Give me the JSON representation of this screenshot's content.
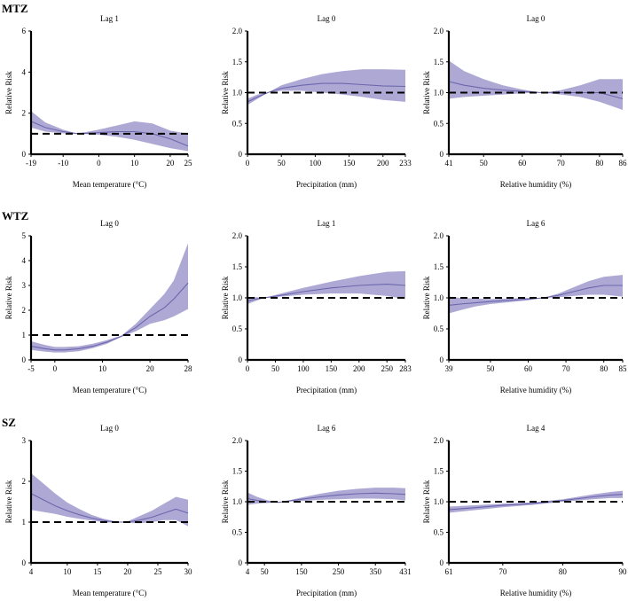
{
  "figure": {
    "rows": [
      {
        "label": "MTZ"
      },
      {
        "label": "WTZ"
      },
      {
        "label": "SZ"
      }
    ]
  },
  "style": {
    "band_color": "#9f9acc",
    "line_color": "#6c66ad",
    "ref_color": "#000000"
  },
  "chart_data": [
    {
      "type": "line",
      "zone": "MTZ",
      "title": "Lag 1",
      "xlabel": "Mean temperature (°C)",
      "ylabel": "Relative Risk",
      "xlim": [
        -19,
        25
      ],
      "ylim": [
        0,
        6
      ],
      "xticks": [
        -19,
        -10,
        0,
        10,
        20,
        25
      ],
      "yticks": [
        0,
        2,
        4,
        6
      ],
      "reference": 1,
      "x": [
        -19,
        -15,
        -10,
        -6,
        0,
        5,
        10,
        15,
        20,
        25
      ],
      "rr": [
        1.6,
        1.3,
        1.1,
        1.0,
        1.05,
        1.1,
        1.1,
        1.0,
        0.75,
        0.4
      ],
      "lower": [
        1.3,
        1.1,
        1.02,
        1.0,
        0.95,
        0.85,
        0.7,
        0.5,
        0.3,
        0.15
      ],
      "upper": [
        2.1,
        1.55,
        1.2,
        1.0,
        1.2,
        1.4,
        1.6,
        1.5,
        1.15,
        1.0
      ]
    },
    {
      "type": "line",
      "zone": "MTZ",
      "title": "Lag 0",
      "xlabel": "Precipitation (mm)",
      "ylabel": "Relative Risk",
      "xlim": [
        0,
        233
      ],
      "ylim": [
        0,
        2.0
      ],
      "xticks": [
        0,
        50,
        100,
        150,
        200,
        233
      ],
      "yticks": [
        "0",
        "0.5",
        "1.0",
        "1.5",
        "2.0"
      ],
      "reference": 1,
      "x": [
        0,
        15,
        30,
        50,
        80,
        110,
        140,
        170,
        200,
        233
      ],
      "rr": [
        0.85,
        0.93,
        1.0,
        1.07,
        1.12,
        1.15,
        1.15,
        1.13,
        1.11,
        1.1
      ],
      "lower": [
        0.8,
        0.9,
        1.0,
        1.03,
        1.03,
        1.0,
        0.97,
        0.93,
        0.88,
        0.85
      ],
      "upper": [
        0.9,
        0.97,
        1.0,
        1.12,
        1.22,
        1.3,
        1.35,
        1.38,
        1.38,
        1.37
      ]
    },
    {
      "type": "line",
      "zone": "MTZ",
      "title": "Lag 0",
      "xlabel": "Relative humidity (%)",
      "ylabel": "Relative Risk",
      "xlim": [
        41,
        86
      ],
      "ylim": [
        0,
        2.0
      ],
      "xticks": [
        41,
        50,
        60,
        70,
        80,
        86
      ],
      "yticks": [
        "0",
        "0.5",
        "1.0",
        "1.5",
        "2.0"
      ],
      "reference": 1,
      "x": [
        41,
        45,
        50,
        55,
        60,
        65,
        70,
        75,
        80,
        86
      ],
      "rr": [
        1.18,
        1.12,
        1.07,
        1.04,
        1.02,
        1.0,
        1.0,
        1.0,
        1.0,
        0.9
      ],
      "lower": [
        0.9,
        0.93,
        0.95,
        0.97,
        0.99,
        1.0,
        0.97,
        0.93,
        0.85,
        0.72
      ],
      "upper": [
        1.52,
        1.35,
        1.22,
        1.12,
        1.05,
        1.0,
        1.04,
        1.12,
        1.22,
        1.22
      ]
    },
    {
      "type": "line",
      "zone": "WTZ",
      "title": "Lag 0",
      "xlabel": "Mean temperature (°C)",
      "ylabel": "Relative Risk",
      "xlim": [
        -5,
        28
      ],
      "ylim": [
        0,
        5
      ],
      "xticks": [
        -5,
        0,
        10,
        20,
        28
      ],
      "yticks": [
        0,
        1,
        2,
        3,
        4,
        5
      ],
      "reference": 1,
      "x": [
        -5,
        -2,
        0,
        2,
        5,
        8,
        11,
        14,
        17,
        20,
        23,
        25,
        28
      ],
      "rr": [
        0.55,
        0.45,
        0.4,
        0.4,
        0.45,
        0.55,
        0.72,
        0.95,
        1.3,
        1.75,
        2.1,
        2.45,
        3.1
      ],
      "lower": [
        0.4,
        0.33,
        0.3,
        0.3,
        0.35,
        0.47,
        0.65,
        0.93,
        1.15,
        1.45,
        1.6,
        1.75,
        2.05
      ],
      "upper": [
        0.75,
        0.6,
        0.52,
        0.52,
        0.55,
        0.65,
        0.8,
        0.98,
        1.45,
        2.05,
        2.65,
        3.2,
        4.7
      ]
    },
    {
      "type": "line",
      "zone": "WTZ",
      "title": "Lag 1",
      "xlabel": "Precipitation (mm)",
      "ylabel": "Relative Risk",
      "xlim": [
        0,
        283
      ],
      "ylim": [
        0,
        2.0
      ],
      "xticks": [
        0,
        50,
        100,
        150,
        200,
        250,
        283
      ],
      "yticks": [
        "0",
        "0.5",
        "1.0",
        "1.5",
        "2.0"
      ],
      "reference": 1,
      "x": [
        0,
        15,
        30,
        60,
        100,
        150,
        200,
        250,
        283
      ],
      "rr": [
        0.95,
        0.98,
        1.0,
        1.04,
        1.1,
        1.16,
        1.2,
        1.22,
        1.2
      ],
      "lower": [
        0.9,
        0.95,
        1.0,
        1.02,
        1.05,
        1.07,
        1.07,
        1.03,
        0.98
      ],
      "upper": [
        1.0,
        1.01,
        1.0,
        1.07,
        1.16,
        1.26,
        1.35,
        1.42,
        1.43
      ]
    },
    {
      "type": "line",
      "zone": "WTZ",
      "title": "Lag 6",
      "xlabel": "Relative humidity (%)",
      "ylabel": "Relative Risk",
      "xlim": [
        39,
        85
      ],
      "ylim": [
        0,
        2.0
      ],
      "xticks": [
        39,
        50,
        60,
        70,
        80,
        85
      ],
      "yticks": [
        "0",
        "0.5",
        "1.0",
        "1.5",
        "2.0"
      ],
      "reference": 1,
      "x": [
        39,
        42,
        46,
        50,
        55,
        60,
        64,
        68,
        72,
        76,
        80,
        85
      ],
      "rr": [
        0.88,
        0.9,
        0.92,
        0.94,
        0.96,
        0.98,
        1.0,
        1.04,
        1.1,
        1.16,
        1.2,
        1.2
      ],
      "lower": [
        0.75,
        0.8,
        0.86,
        0.9,
        0.93,
        0.96,
        1.0,
        1.01,
        1.03,
        1.05,
        1.05,
        1.02
      ],
      "upper": [
        1.02,
        1.0,
        0.99,
        0.98,
        0.99,
        1.0,
        1.0,
        1.07,
        1.17,
        1.27,
        1.34,
        1.37
      ]
    },
    {
      "type": "line",
      "zone": "SZ",
      "title": "Lag 0",
      "xlabel": "Mean temperature (°C)",
      "ylabel": "Relative Risk",
      "xlim": [
        4,
        30
      ],
      "ylim": [
        0,
        3
      ],
      "xticks": [
        4,
        10,
        15,
        20,
        25,
        30
      ],
      "yticks": [
        0,
        1,
        2,
        3
      ],
      "reference": 1,
      "x": [
        4,
        6,
        8,
        10,
        12,
        14,
        16,
        18,
        19,
        20,
        22,
        24,
        26,
        28,
        30
      ],
      "rr": [
        1.7,
        1.55,
        1.4,
        1.28,
        1.18,
        1.1,
        1.04,
        1.0,
        1.0,
        1.0,
        1.05,
        1.12,
        1.22,
        1.32,
        1.22
      ],
      "lower": [
        1.3,
        1.25,
        1.2,
        1.13,
        1.08,
        1.04,
        1.0,
        0.98,
        1.0,
        0.98,
        0.97,
        1.0,
        1.05,
        1.05,
        0.9
      ],
      "upper": [
        2.2,
        1.95,
        1.7,
        1.48,
        1.32,
        1.18,
        1.08,
        1.02,
        1.0,
        1.02,
        1.15,
        1.28,
        1.45,
        1.62,
        1.55
      ]
    },
    {
      "type": "line",
      "zone": "SZ",
      "title": "Lag 6",
      "xlabel": "Precipitation (mm)",
      "ylabel": "Relative Risk",
      "xlim": [
        4,
        431
      ],
      "ylim": [
        0,
        2.0
      ],
      "xticks": [
        4,
        50,
        150,
        250,
        350,
        431
      ],
      "yticks": [
        "0",
        "0.5",
        "1.0",
        "1.5",
        "2.0"
      ],
      "reference": 1,
      "x": [
        4,
        30,
        60,
        90,
        100,
        150,
        200,
        250,
        300,
        350,
        400,
        431
      ],
      "rr": [
        1.05,
        1.02,
        1.0,
        0.99,
        1.0,
        1.04,
        1.08,
        1.11,
        1.13,
        1.14,
        1.13,
        1.12
      ],
      "lower": [
        0.95,
        0.97,
        0.98,
        0.99,
        1.0,
        1.01,
        1.03,
        1.04,
        1.05,
        1.05,
        1.04,
        1.02
      ],
      "upper": [
        1.15,
        1.08,
        1.02,
        0.99,
        1.0,
        1.07,
        1.13,
        1.18,
        1.21,
        1.23,
        1.23,
        1.22
      ]
    },
    {
      "type": "line",
      "zone": "SZ",
      "title": "Lag 4",
      "xlabel": "Relative humidity (%)",
      "ylabel": "Relative Risk",
      "xlim": [
        61,
        90
      ],
      "ylim": [
        0,
        2.0
      ],
      "xticks": [
        61,
        70,
        80,
        90
      ],
      "yticks": [
        "0",
        "0.5",
        "1.0",
        "1.5",
        "2.0"
      ],
      "reference": 1,
      "x": [
        61,
        65,
        70,
        75,
        80,
        85,
        88,
        90
      ],
      "rr": [
        0.87,
        0.9,
        0.94,
        0.97,
        1.02,
        1.08,
        1.11,
        1.12
      ],
      "lower": [
        0.82,
        0.86,
        0.91,
        0.95,
        1.0,
        1.04,
        1.06,
        1.06
      ],
      "upper": [
        0.92,
        0.94,
        0.97,
        0.99,
        1.04,
        1.12,
        1.16,
        1.18
      ]
    }
  ]
}
